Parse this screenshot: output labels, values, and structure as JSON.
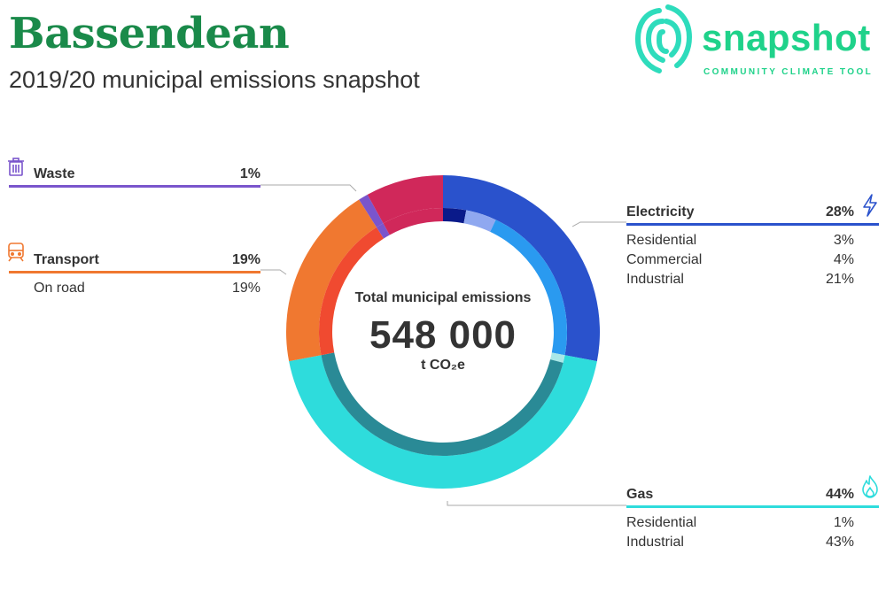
{
  "header": {
    "title": "Bassendean",
    "subtitle": "2019/20 municipal emissions snapshot"
  },
  "logo": {
    "word": "snapshot",
    "tagline": "COMMUNITY CLIMATE TOOL"
  },
  "center": {
    "label": "Total municipal emissions",
    "value": "548 000",
    "unit": "t CO₂e"
  },
  "chart_data": {
    "type": "pie",
    "variant": "donut",
    "total": 548000,
    "unit": "t CO2e",
    "sectors": [
      {
        "name": "Electricity",
        "percent": 28,
        "color": "#2a52cc",
        "icon": "lightning-icon",
        "subcategories": [
          {
            "name": "Residential",
            "percent": 3,
            "color": "#0a1a8a"
          },
          {
            "name": "Commercial",
            "percent": 4,
            "color": "#8fa8f0"
          },
          {
            "name": "Industrial",
            "percent": 21,
            "color": "#2a9af0"
          }
        ]
      },
      {
        "name": "Gas",
        "percent": 44,
        "color": "#2edcdc",
        "icon": "flame-icon",
        "subcategories": [
          {
            "name": "Residential",
            "percent": 1,
            "color": "#a8e8e8"
          },
          {
            "name": "Industrial",
            "percent": 43,
            "color": "#2a8a96"
          }
        ]
      },
      {
        "name": "Transport",
        "percent": 19,
        "color": "#f07830",
        "icon": "train-icon",
        "subcategories": [
          {
            "name": "On road",
            "percent": 19,
            "color": "#f04a30"
          }
        ]
      },
      {
        "name": "Waste",
        "percent": 1,
        "color": "#7a55cc",
        "icon": "trash-icon",
        "subcategories": []
      },
      {
        "name": "",
        "percent": 8,
        "color": "#d0285a",
        "subcategories": []
      }
    ]
  }
}
